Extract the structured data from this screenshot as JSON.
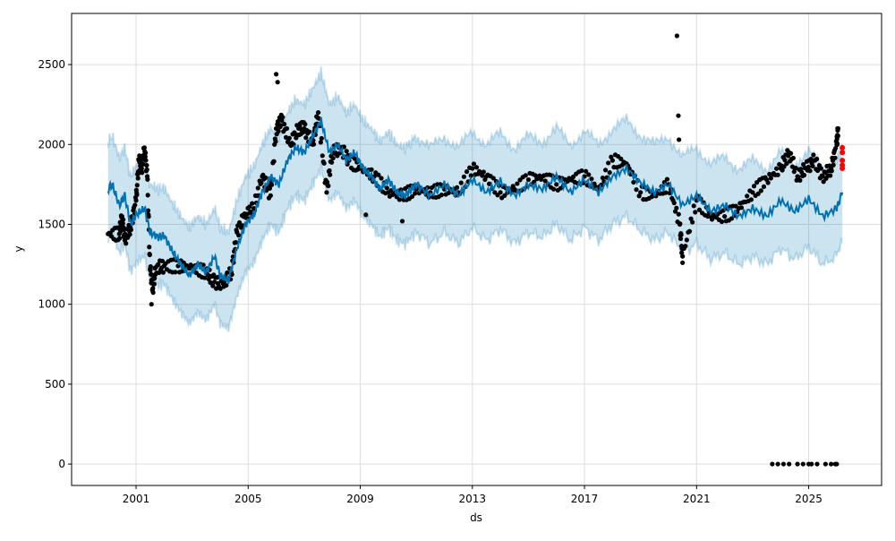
{
  "chart_data": {
    "type": "line",
    "title": "",
    "xlabel": "ds",
    "ylabel": "y",
    "xlim": [
      1998.7,
      2027.6
    ],
    "ylim": [
      -134,
      2820
    ],
    "grid": true,
    "x_ticks": [
      2001,
      2005,
      2009,
      2013,
      2017,
      2021,
      2025
    ],
    "y_ticks": [
      0,
      500,
      1000,
      1500,
      2000,
      2500
    ],
    "colors": {
      "forecast": "#0072B2",
      "band": "#0072B2",
      "observed": "#000000",
      "test_points": "#ff0000"
    },
    "forecast": {
      "x": [
        2000.0,
        2000.15,
        2000.4,
        2000.6,
        2000.8,
        2001.0,
        2001.3,
        2001.5,
        2001.8,
        2002.0,
        2002.3,
        2002.6,
        2002.9,
        2003.2,
        2003.5,
        2003.8,
        2004.0,
        2004.3,
        2004.6,
        2004.9,
        2005.2,
        2005.5,
        2005.8,
        2006.1,
        2006.4,
        2006.7,
        2007.0,
        2007.3,
        2007.6,
        2007.9,
        2008.2,
        2008.5,
        2008.8,
        2009.1,
        2009.4,
        2009.7,
        2010.0,
        2010.3,
        2010.6,
        2011.0,
        2011.5,
        2012.0,
        2012.5,
        2013.0,
        2013.5,
        2014.0,
        2014.5,
        2015.0,
        2015.5,
        2016.0,
        2016.5,
        2017.0,
        2017.5,
        2018.0,
        2018.5,
        2019.0,
        2019.5,
        2020.0,
        2020.5,
        2021.0,
        2021.5,
        2022.0,
        2022.5,
        2023.0,
        2023.5,
        2024.0,
        2024.5,
        2025.0,
        2025.5,
        2026.0,
        2026.2
      ],
      "yhat": [
        1720,
        1750,
        1620,
        1680,
        1500,
        1560,
        1600,
        1450,
        1420,
        1430,
        1330,
        1250,
        1180,
        1250,
        1200,
        1300,
        1180,
        1150,
        1350,
        1500,
        1560,
        1700,
        1800,
        1750,
        1900,
        1980,
        1950,
        2050,
        2150,
        1950,
        2000,
        1900,
        1950,
        1850,
        1800,
        1720,
        1780,
        1700,
        1680,
        1750,
        1680,
        1750,
        1680,
        1780,
        1700,
        1770,
        1680,
        1750,
        1720,
        1800,
        1700,
        1780,
        1700,
        1800,
        1850,
        1760,
        1700,
        1750,
        1620,
        1680,
        1580,
        1620,
        1550,
        1600,
        1550,
        1650,
        1580,
        1660,
        1550,
        1600,
        1700
      ],
      "uncertainty": 300
    },
    "observed": [
      [
        2000.0,
        1440
      ],
      [
        2000.4,
        1440
      ],
      [
        2000.5,
        1550
      ],
      [
        2000.6,
        1400
      ],
      [
        2000.8,
        1480
      ],
      [
        2001.0,
        1650
      ],
      [
        2001.1,
        1900
      ],
      [
        2001.2,
        1850
      ],
      [
        2001.3,
        1980
      ],
      [
        2001.4,
        1800
      ],
      [
        2001.5,
        1220
      ],
      [
        2001.6,
        1100
      ],
      [
        2001.7,
        1230
      ],
      [
        2002.0,
        1240
      ],
      [
        2002.5,
        1240
      ],
      [
        2003.0,
        1230
      ],
      [
        2003.5,
        1200
      ],
      [
        2003.8,
        1140
      ],
      [
        2004.1,
        1130
      ],
      [
        2004.4,
        1200
      ],
      [
        2004.6,
        1450
      ],
      [
        2004.9,
        1560
      ],
      [
        2005.2,
        1600
      ],
      [
        2005.5,
        1800
      ],
      [
        2005.8,
        1680
      ],
      [
        2006.0,
        2100
      ],
      [
        2006.2,
        2150
      ],
      [
        2006.5,
        2000
      ],
      [
        2006.8,
        2100
      ],
      [
        2007.0,
        2100
      ],
      [
        2007.3,
        2000
      ],
      [
        2007.5,
        2200
      ],
      [
        2007.8,
        1700
      ],
      [
        2008.0,
        1950
      ],
      [
        2008.3,
        1980
      ],
      [
        2008.6,
        1900
      ],
      [
        2009.0,
        1850
      ],
      [
        2009.5,
        1800
      ],
      [
        2010.0,
        1700
      ],
      [
        2010.5,
        1680
      ],
      [
        2011.0,
        1720
      ],
      [
        2011.5,
        1700
      ],
      [
        2012.0,
        1720
      ],
      [
        2012.5,
        1700
      ],
      [
        2013.0,
        1850
      ],
      [
        2013.5,
        1800
      ],
      [
        2014.0,
        1700
      ],
      [
        2014.5,
        1720
      ],
      [
        2015.0,
        1780
      ],
      [
        2015.5,
        1800
      ],
      [
        2016.0,
        1750
      ],
      [
        2016.5,
        1780
      ],
      [
        2017.0,
        1800
      ],
      [
        2017.5,
        1720
      ],
      [
        2018.0,
        1900
      ],
      [
        2018.5,
        1880
      ],
      [
        2019.0,
        1700
      ],
      [
        2019.5,
        1680
      ],
      [
        2020.0,
        1750
      ],
      [
        2020.4,
        1500
      ],
      [
        2020.5,
        1300
      ],
      [
        2021.0,
        1650
      ],
      [
        2021.5,
        1550
      ],
      [
        2022.0,
        1550
      ],
      [
        2022.5,
        1600
      ],
      [
        2023.0,
        1700
      ],
      [
        2023.5,
        1780
      ],
      [
        2024.0,
        1850
      ],
      [
        2024.3,
        1950
      ],
      [
        2024.6,
        1800
      ],
      [
        2024.9,
        1850
      ],
      [
        2025.2,
        1900
      ],
      [
        2025.5,
        1800
      ],
      [
        2025.8,
        1850
      ],
      [
        2026.0,
        2000
      ],
      [
        2026.05,
        2100
      ]
    ],
    "observed_outliers": [
      [
        2006.0,
        2440
      ],
      [
        2006.05,
        2390
      ],
      [
        2020.3,
        2680
      ],
      [
        2020.35,
        2180
      ],
      [
        2020.37,
        2030
      ],
      [
        2009.2,
        1560
      ],
      [
        2010.5,
        1520
      ],
      [
        2001.55,
        1000
      ],
      [
        2020.5,
        1260
      ]
    ],
    "observed_zeros": [
      2023.7,
      2023.9,
      2024.1,
      2024.3,
      2024.6,
      2024.8,
      2025.0,
      2025.1,
      2025.3,
      2025.6,
      2025.8,
      2025.95,
      2026.0
    ],
    "test_points": [
      [
        2026.2,
        1980
      ],
      [
        2026.2,
        1950
      ],
      [
        2026.2,
        1900
      ],
      [
        2026.2,
        1870
      ],
      [
        2026.2,
        1850
      ]
    ]
  }
}
